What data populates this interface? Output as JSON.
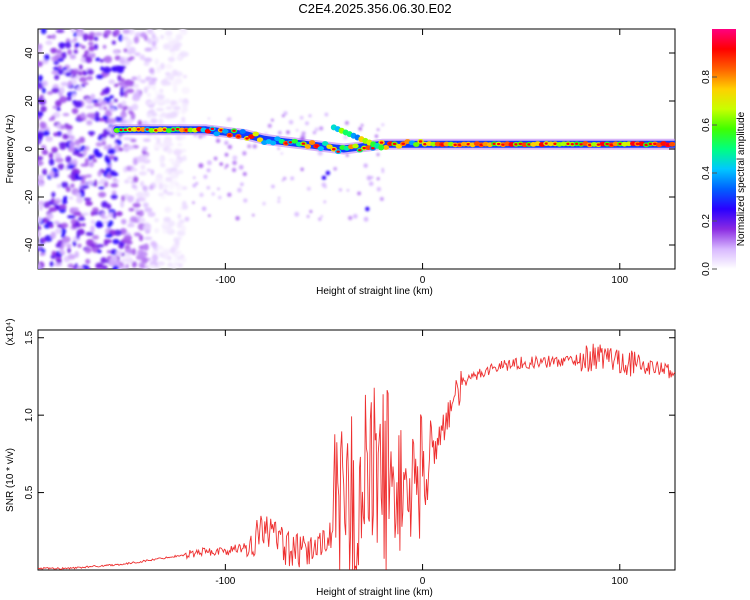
{
  "title": "C2E4.2025.356.06.30.E02",
  "chart_data": [
    {
      "type": "heatmap",
      "name": "spectrogram",
      "xlabel": "Height of straight line (km)",
      "ylabel": "Frequency (Hz)",
      "xlim": [
        -195,
        128
      ],
      "ylim": [
        -50,
        50
      ],
      "xticks": [
        -100,
        0,
        100
      ],
      "yticks": [
        -40,
        -20,
        0,
        20,
        40
      ],
      "colorbar": {
        "label": "Normalized spectral amplitude",
        "range": [
          0,
          1
        ],
        "ticks": [
          "0.0",
          "0.2",
          "0.4",
          "0.6",
          "0.8"
        ],
        "colors": [
          "#ffffff",
          "#d8b8ff",
          "#8a2be2",
          "#2a00ff",
          "#0060ff",
          "#00c8ff",
          "#00ff80",
          "#40ff00",
          "#c8ff00",
          "#ffd000",
          "#ff6000",
          "#ff0000",
          "#ff0080"
        ]
      },
      "ridge": {
        "x": [
          -155,
          -130,
          -110,
          -100,
          -90,
          -80,
          -70,
          -60,
          -50,
          -40,
          -30,
          -20,
          -10,
          0,
          20,
          50,
          80,
          110,
          128
        ],
        "freq": [
          8,
          8,
          8,
          7,
          6,
          4,
          3,
          2,
          1,
          0,
          1,
          2,
          2,
          2,
          2,
          2,
          2,
          2,
          2
        ]
      }
    },
    {
      "type": "line",
      "name": "snr",
      "xlabel": "Height of straight line (km)",
      "ylabel": "SNR (10 * v/v)",
      "multiplier": "(x10⁴)",
      "xlim": [
        -195,
        128
      ],
      "ylim": [
        0,
        1.55
      ],
      "xticks": [
        -100,
        0,
        100
      ],
      "yticks": [
        0.5,
        1.0,
        1.5
      ],
      "color": "#ee3030",
      "x": [
        -195,
        -180,
        -170,
        -160,
        -150,
        -140,
        -130,
        -120,
        -110,
        -100,
        -90,
        -85,
        -80,
        -75,
        -70,
        -65,
        -60,
        -55,
        -50,
        -45,
        -40,
        -35,
        -30,
        -25,
        -20,
        -15,
        -10,
        -5,
        0,
        5,
        10,
        15,
        20,
        30,
        40,
        50,
        60,
        70,
        80,
        90,
        100,
        110,
        120,
        128
      ],
      "y": [
        0.01,
        0.01,
        0.02,
        0.03,
        0.04,
        0.06,
        0.08,
        0.1,
        0.12,
        0.12,
        0.15,
        0.2,
        0.28,
        0.22,
        0.15,
        0.12,
        0.1,
        0.14,
        0.2,
        0.25,
        0.35,
        0.45,
        0.55,
        0.6,
        0.62,
        0.55,
        0.5,
        0.55,
        0.62,
        0.75,
        0.92,
        1.05,
        1.2,
        1.28,
        1.32,
        1.34,
        1.34,
        1.35,
        1.36,
        1.38,
        1.36,
        1.32,
        1.3,
        1.28
      ]
    }
  ]
}
